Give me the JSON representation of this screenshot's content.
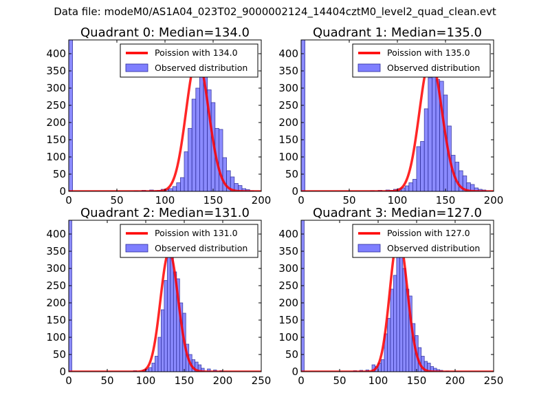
{
  "figure": {
    "suptitle": "Data file: modeM0/AS1A04_023T02_9000002124_14404cztM0_level2_quad_clean.evt"
  },
  "colors": {
    "bar_fill": "#7f7fff",
    "bar_stroke": "#2a2a99",
    "curve": "#ff0000",
    "axis": "#000000",
    "background": "#ffffff"
  },
  "chart_data": [
    {
      "type": "bar",
      "title": "Quadrant 0: Median=134.0",
      "median": 134,
      "xlim": [
        0,
        200
      ],
      "ylim": [
        0,
        440
      ],
      "xticks": [
        0,
        50,
        100,
        150,
        200
      ],
      "yticks": [
        0,
        50,
        100,
        150,
        200,
        250,
        300,
        350,
        400
      ],
      "bin_width": 4,
      "legend": {
        "placement": "top-right",
        "curve_label": "Poission with 134.0",
        "hist_label": "Observed distribution"
      },
      "bins": [
        [
          0,
          440
        ],
        [
          68,
          1
        ],
        [
          76,
          3
        ],
        [
          84,
          4
        ],
        [
          88,
          2
        ],
        [
          92,
          3
        ],
        [
          96,
          6
        ],
        [
          100,
          5
        ],
        [
          104,
          8
        ],
        [
          108,
          14
        ],
        [
          112,
          25
        ],
        [
          116,
          40
        ],
        [
          120,
          115
        ],
        [
          124,
          183
        ],
        [
          128,
          268
        ],
        [
          132,
          300
        ],
        [
          136,
          340
        ],
        [
          140,
          345
        ],
        [
          144,
          295
        ],
        [
          148,
          258
        ],
        [
          152,
          183
        ],
        [
          156,
          180
        ],
        [
          160,
          98
        ],
        [
          164,
          60
        ],
        [
          168,
          42
        ],
        [
          172,
          23
        ],
        [
          176,
          17
        ],
        [
          180,
          8
        ],
        [
          184,
          5
        ],
        [
          188,
          2
        ]
      ]
    },
    {
      "type": "bar",
      "title": "Quadrant 1: Median=135.0",
      "median": 135,
      "xlim": [
        0,
        200
      ],
      "ylim": [
        0,
        440
      ],
      "xticks": [
        0,
        50,
        100,
        150,
        200
      ],
      "yticks": [
        0,
        50,
        100,
        150,
        200,
        250,
        300,
        350,
        400
      ],
      "bin_width": 4,
      "legend": {
        "placement": "top-right",
        "curve_label": "Poission with 135.0",
        "hist_label": "Observed distribution"
      },
      "bins": [
        [
          0,
          440
        ],
        [
          72,
          2
        ],
        [
          80,
          3
        ],
        [
          88,
          4
        ],
        [
          92,
          3
        ],
        [
          96,
          6
        ],
        [
          100,
          8
        ],
        [
          104,
          10
        ],
        [
          108,
          16
        ],
        [
          112,
          25
        ],
        [
          116,
          35
        ],
        [
          120,
          130
        ],
        [
          124,
          145
        ],
        [
          128,
          240
        ],
        [
          132,
          330
        ],
        [
          136,
          380
        ],
        [
          140,
          325
        ],
        [
          144,
          320
        ],
        [
          148,
          280
        ],
        [
          152,
          190
        ],
        [
          156,
          105
        ],
        [
          160,
          85
        ],
        [
          164,
          60
        ],
        [
          168,
          45
        ],
        [
          172,
          25
        ],
        [
          176,
          20
        ],
        [
          180,
          10
        ],
        [
          184,
          6
        ],
        [
          188,
          4
        ]
      ]
    },
    {
      "type": "bar",
      "title": "Quadrant 2: Median=131.0",
      "median": 131,
      "xlim": [
        0,
        250
      ],
      "ylim": [
        0,
        440
      ],
      "xticks": [
        0,
        50,
        100,
        150,
        200,
        250
      ],
      "yticks": [
        0,
        50,
        100,
        150,
        200,
        250,
        300,
        350,
        400
      ],
      "bin_width": 4,
      "legend": {
        "placement": "top-right",
        "curve_label": "Poission with 131.0",
        "hist_label": "Observed distribution"
      },
      "bins": [
        [
          0,
          440
        ],
        [
          84,
          3
        ],
        [
          96,
          5
        ],
        [
          100,
          8
        ],
        [
          104,
          12
        ],
        [
          108,
          25
        ],
        [
          112,
          45
        ],
        [
          116,
          100
        ],
        [
          120,
          180
        ],
        [
          124,
          265
        ],
        [
          128,
          340
        ],
        [
          132,
          350
        ],
        [
          136,
          290
        ],
        [
          140,
          270
        ],
        [
          144,
          200
        ],
        [
          148,
          170
        ],
        [
          152,
          80
        ],
        [
          156,
          50
        ],
        [
          160,
          35
        ],
        [
          164,
          28
        ],
        [
          168,
          20
        ],
        [
          172,
          10
        ],
        [
          180,
          8
        ],
        [
          188,
          5
        ],
        [
          196,
          3
        ]
      ]
    },
    {
      "type": "bar",
      "title": "Quadrant 3: Median=127.0",
      "median": 127,
      "xlim": [
        0,
        250
      ],
      "ylim": [
        0,
        440
      ],
      "xticks": [
        0,
        50,
        100,
        150,
        200,
        250
      ],
      "yticks": [
        0,
        50,
        100,
        150,
        200,
        250,
        300,
        350,
        400
      ],
      "bin_width": 4,
      "legend": {
        "placement": "top-right",
        "curve_label": "Poission with 127.0",
        "hist_label": "Observed distribution"
      },
      "bins": [
        [
          0,
          440
        ],
        [
          68,
          3
        ],
        [
          76,
          4
        ],
        [
          84,
          5
        ],
        [
          92,
          20
        ],
        [
          96,
          15
        ],
        [
          100,
          25
        ],
        [
          104,
          35
        ],
        [
          108,
          110
        ],
        [
          112,
          155
        ],
        [
          116,
          240
        ],
        [
          120,
          280
        ],
        [
          124,
          340
        ],
        [
          128,
          345
        ],
        [
          132,
          300
        ],
        [
          136,
          240
        ],
        [
          140,
          220
        ],
        [
          144,
          140
        ],
        [
          148,
          105
        ],
        [
          152,
          70
        ],
        [
          156,
          45
        ],
        [
          160,
          30
        ],
        [
          164,
          25
        ],
        [
          168,
          15
        ],
        [
          172,
          10
        ],
        [
          176,
          6
        ],
        [
          180,
          4
        ],
        [
          188,
          2
        ]
      ]
    }
  ]
}
